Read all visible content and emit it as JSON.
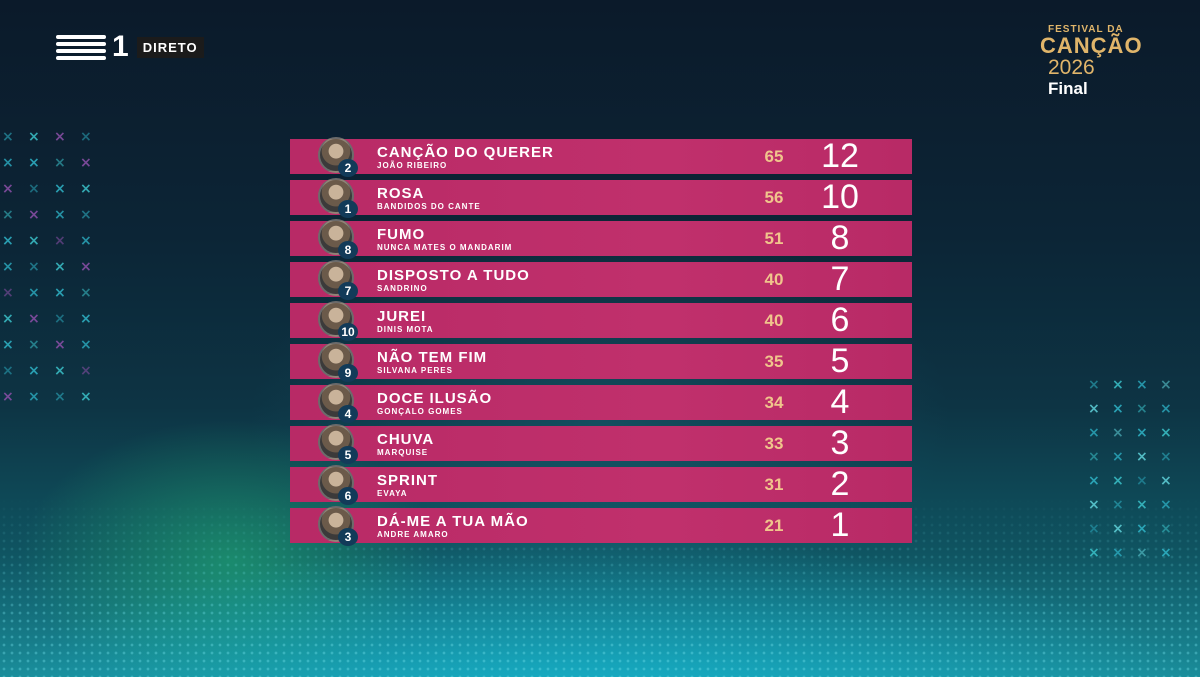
{
  "broadcast": {
    "channel_number": "1",
    "live_label": "DIRETO"
  },
  "festival": {
    "top_text": "FESTIVAL DA",
    "name": "CANÇÃO",
    "year": "2026",
    "stage": "Final"
  },
  "rows": [
    {
      "order": "2",
      "song": "CANÇÃO DO QUERER",
      "artist": "JOÃO RIBEIRO",
      "score": "65",
      "points": "12"
    },
    {
      "order": "1",
      "song": "ROSA",
      "artist": "BANDIDOS DO CANTE",
      "score": "56",
      "points": "10"
    },
    {
      "order": "8",
      "song": "FUMO",
      "artist": "NUNCA MATES O MANDARIM",
      "score": "51",
      "points": "8"
    },
    {
      "order": "7",
      "song": "DISPOSTO A TUDO",
      "artist": "SANDRINO",
      "score": "40",
      "points": "7"
    },
    {
      "order": "10",
      "song": "JUREI",
      "artist": "DINIS MOTA",
      "score": "40",
      "points": "6"
    },
    {
      "order": "9",
      "song": "NÃO TEM FIM",
      "artist": "SILVANA PERES",
      "score": "35",
      "points": "5"
    },
    {
      "order": "4",
      "song": "DOCE ILUSÃO",
      "artist": "GONÇALO GOMES",
      "score": "34",
      "points": "4"
    },
    {
      "order": "5",
      "song": "CHUVA",
      "artist": "MARQUISE",
      "score": "33",
      "points": "3"
    },
    {
      "order": "6",
      "song": "SPRINT",
      "artist": "EVAYA",
      "score": "31",
      "points": "2"
    },
    {
      "order": "3",
      "song": "DÁ-ME A TUA MÃO",
      "artist": "ANDRE AMARO",
      "score": "21",
      "points": "1"
    }
  ],
  "colors": {
    "row": "#c0306c",
    "score": "#f0c58c",
    "order_badge": "#123b59",
    "festival_gold": "#e0b56a"
  }
}
